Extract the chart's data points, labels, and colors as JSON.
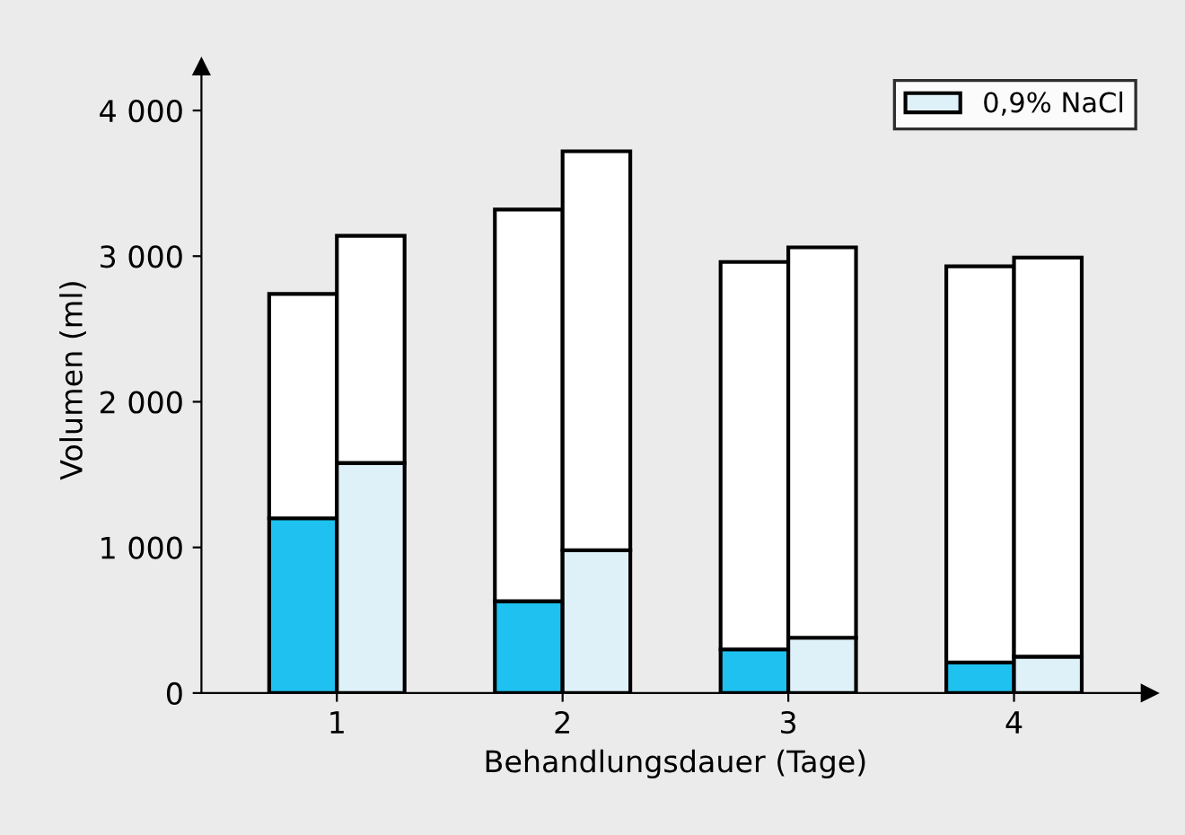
{
  "chart_data": [
    {
      "type": "bar",
      "stacked": true,
      "xlabel": "Behandlungsdauer (Tage)",
      "ylabel": "Volumen (ml)",
      "categories": [
        "1",
        "2",
        "3",
        "4"
      ],
      "series": [
        {
          "color": "#1ec1ef",
          "values": [
            1200,
            630,
            300,
            210
          ]
        },
        {
          "color": "#ffffff",
          "values": [
            1540,
            2690,
            2660,
            2720
          ]
        }
      ],
      "ylim": [
        0,
        4300
      ],
      "yticks": [
        0,
        {
          "value": 1000,
          "label": "1 000"
        },
        {
          "value": 2000,
          "label": "2 000"
        },
        {
          "value": 3000,
          "label": "3 000"
        },
        {
          "value": 4000,
          "label": "4 000"
        }
      ],
      "grid": false
    },
    {
      "type": "bar",
      "stacked": true,
      "categories": [
        "1",
        "2",
        "3",
        "4"
      ],
      "series": [
        {
          "name": "0,9% NaCl",
          "color": "#dff1f8",
          "values": [
            1580,
            980,
            380,
            250
          ]
        },
        {
          "color": "#ffffff",
          "values": [
            1560,
            2740,
            2680,
            2740
          ]
        }
      ],
      "ylim": [
        0,
        4300
      ],
      "tick_labels": false,
      "grid": false,
      "legend": "top right"
    }
  ]
}
